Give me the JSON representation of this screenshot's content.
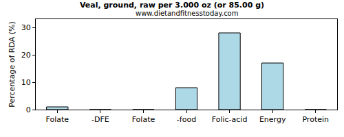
{
  "chart_data": {
    "type": "bar",
    "title": "Veal, ground, raw per 3.000 oz (or 85.00 g)",
    "subtitle": "www.dietandfitnesstoday.com",
    "y_label": "Percentage of RDA (%)",
    "categories": [
      "Folate",
      "-DFE",
      "Folate",
      "-food",
      "Folic-acid",
      "Energy",
      "Protein"
    ],
    "values": [
      1,
      0,
      0,
      8,
      28,
      17,
      0
    ],
    "color": "#add8e6",
    "ylim": [
      0,
      33
    ],
    "yticks": [
      0,
      10,
      20,
      30
    ],
    "grid": false
  }
}
